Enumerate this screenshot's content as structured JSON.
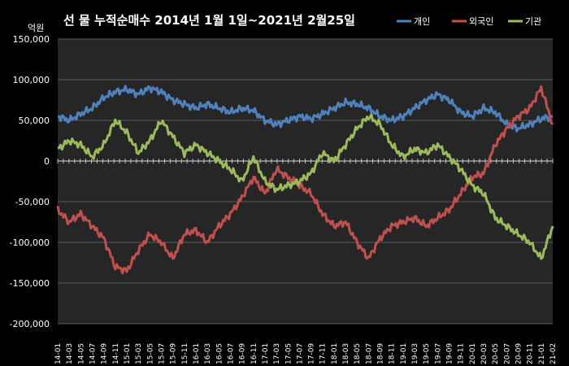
{
  "colors": {
    "background": "#000000",
    "plot_background": "#262626",
    "text": "#ffffff",
    "grid": "#595959",
    "individual": "#4f81bd",
    "foreign": "#c0504d",
    "institution": "#9bbb59"
  },
  "chart_data": {
    "type": "line",
    "title": "선 물 누적순매수 2014년 1월 1일~2021년 2월25일",
    "ylabel": "억원",
    "xlabel": "",
    "ylim": [
      -200000,
      150000
    ],
    "y_ticks": [
      150000,
      100000,
      50000,
      0,
      -50000,
      -100000,
      -150000,
      -200000
    ],
    "y_tick_labels": [
      "150,000",
      "100,000",
      "50,000",
      "0",
      "-50,000",
      "-100,000",
      "-150,000",
      "-200,000"
    ],
    "grid": true,
    "legend": "top-right",
    "x": [
      "14-01",
      "14-03",
      "14-05",
      "14-07",
      "14-09",
      "14-11",
      "15-01",
      "15-03",
      "15-05",
      "15-07",
      "15-09",
      "15-11",
      "16-01",
      "16-03",
      "16-05",
      "16-07",
      "16-09",
      "16-11",
      "17-01",
      "17-03",
      "17-05",
      "17-07",
      "17-09",
      "17-11",
      "18-01",
      "18-03",
      "18-05",
      "18-07",
      "18-09",
      "18-11",
      "19-01",
      "19-03",
      "19-05",
      "19-07",
      "19-09",
      "19-11",
      "20-01",
      "20-03",
      "20-05",
      "20-07",
      "20-09",
      "20-11",
      "21-01",
      "21-02"
    ],
    "series": [
      {
        "name": "개인",
        "values": [
          55000,
          50000,
          58000,
          65000,
          78000,
          85000,
          88000,
          82000,
          90000,
          85000,
          75000,
          70000,
          65000,
          70000,
          65000,
          60000,
          65000,
          62000,
          50000,
          45000,
          50000,
          55000,
          52000,
          58000,
          65000,
          72000,
          70000,
          65000,
          55000,
          50000,
          55000,
          65000,
          75000,
          82000,
          75000,
          60000,
          55000,
          65000,
          60000,
          45000,
          40000,
          45000,
          52000,
          55000
        ]
      },
      {
        "name": "외국인",
        "values": [
          -60000,
          -75000,
          -65000,
          -80000,
          -95000,
          -130000,
          -135000,
          -110000,
          -90000,
          -100000,
          -120000,
          -90000,
          -85000,
          -100000,
          -80000,
          -65000,
          -45000,
          -20000,
          -40000,
          -10000,
          -20000,
          -30000,
          -40000,
          -65000,
          -80000,
          -75000,
          -100000,
          -120000,
          -95000,
          -80000,
          -75000,
          -70000,
          -80000,
          -70000,
          -60000,
          -40000,
          -20000,
          -15000,
          20000,
          40000,
          55000,
          65000,
          90000,
          45000
        ]
      },
      {
        "name": "기관",
        "values": [
          15000,
          25000,
          20000,
          5000,
          20000,
          50000,
          35000,
          10000,
          25000,
          50000,
          30000,
          10000,
          20000,
          10000,
          0,
          -10000,
          -25000,
          5000,
          -25000,
          -35000,
          -30000,
          -25000,
          -15000,
          10000,
          0,
          20000,
          40000,
          55000,
          45000,
          20000,
          5000,
          15000,
          10000,
          20000,
          5000,
          -10000,
          -30000,
          -40000,
          -70000,
          -80000,
          -90000,
          -100000,
          -120000,
          -80000
        ]
      }
    ]
  }
}
